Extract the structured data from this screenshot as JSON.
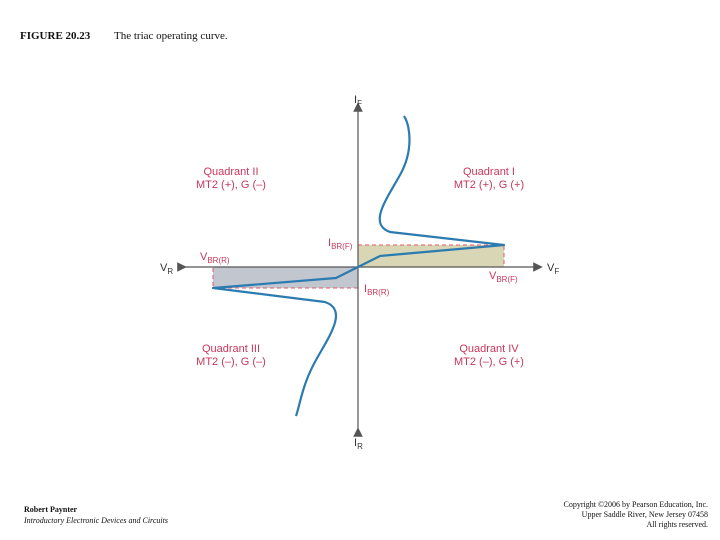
{
  "header": {
    "figure_number": "FIGURE 20.23",
    "figure_title": "The triac operating curve."
  },
  "diagram": {
    "axes": {
      "y_top": {
        "main": "I",
        "sub": "F"
      },
      "y_bottom": {
        "main": "I",
        "sub": "R"
      },
      "x_left": {
        "main": "V",
        "sub": "R"
      },
      "x_right": {
        "main": "V",
        "sub": "F"
      }
    },
    "points": {
      "v_br_r": {
        "main": "V",
        "sub": "BR(R)"
      },
      "v_br_f": {
        "main": "V",
        "sub": "BR(F)"
      },
      "i_br_f": {
        "main": "I",
        "sub": "BR(F)"
      },
      "i_br_r": {
        "main": "I",
        "sub": "BR(R)"
      }
    },
    "quadrants": [
      {
        "name": "Quadrant II",
        "detail": "MT2 (+), G (–)"
      },
      {
        "name": "Quadrant I",
        "detail": "MT2 (+), G (+)"
      },
      {
        "name": "Quadrant III",
        "detail": "MT2 (–), G (–)"
      },
      {
        "name": "Quadrant IV",
        "detail": "MT2 (–), G (+)"
      }
    ],
    "colors": {
      "curve": "#2b7bb0",
      "axis": "#555555",
      "dashed": "#e05a6a",
      "quadrant_text": "#c8375c",
      "fill_forward": "#d8d6b4",
      "fill_reverse": "#c2c6cf"
    }
  },
  "footer": {
    "author": "Robert Paynter",
    "book": "Introductory Electronic Devices and Circuits",
    "copyright_lines": [
      "Copyright ©2006 by Pearson Education, Inc.",
      "Upper Saddle River, New Jersey 07458",
      "All rights reserved."
    ]
  }
}
